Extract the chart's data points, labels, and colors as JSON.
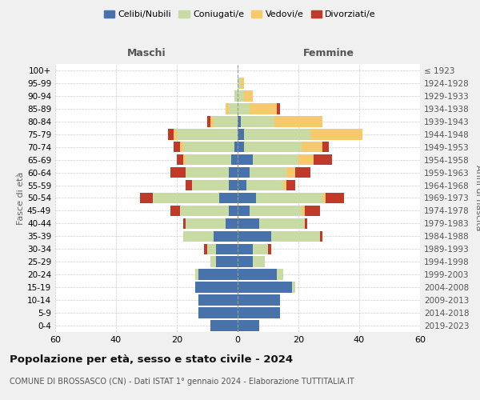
{
  "age_groups": [
    "0-4",
    "5-9",
    "10-14",
    "15-19",
    "20-24",
    "25-29",
    "30-34",
    "35-39",
    "40-44",
    "45-49",
    "50-54",
    "55-59",
    "60-64",
    "65-69",
    "70-74",
    "75-79",
    "80-84",
    "85-89",
    "90-94",
    "95-99",
    "100+"
  ],
  "birth_years": [
    "2019-2023",
    "2014-2018",
    "2009-2013",
    "2004-2008",
    "1999-2003",
    "1994-1998",
    "1989-1993",
    "1984-1988",
    "1979-1983",
    "1974-1978",
    "1969-1973",
    "1964-1968",
    "1959-1963",
    "1954-1958",
    "1949-1953",
    "1944-1948",
    "1939-1943",
    "1934-1938",
    "1929-1933",
    "1924-1928",
    "≤ 1923"
  ],
  "male": {
    "celibi": [
      9,
      13,
      13,
      14,
      13,
      7,
      7,
      8,
      4,
      3,
      6,
      3,
      3,
      2,
      1,
      0,
      0,
      0,
      0,
      0,
      0
    ],
    "coniugati": [
      0,
      0,
      0,
      0,
      1,
      2,
      3,
      10,
      13,
      16,
      22,
      12,
      14,
      15,
      17,
      20,
      8,
      3,
      1,
      0,
      0
    ],
    "vedovi": [
      0,
      0,
      0,
      0,
      0,
      0,
      0,
      0,
      0,
      0,
      0,
      0,
      0,
      1,
      1,
      1,
      1,
      1,
      0,
      0,
      0
    ],
    "divorziati": [
      0,
      0,
      0,
      0,
      0,
      0,
      1,
      0,
      1,
      3,
      4,
      2,
      5,
      2,
      2,
      2,
      1,
      0,
      0,
      0,
      0
    ]
  },
  "female": {
    "nubili": [
      7,
      14,
      14,
      18,
      13,
      5,
      5,
      11,
      7,
      4,
      6,
      3,
      4,
      5,
      2,
      2,
      1,
      0,
      0,
      0,
      0
    ],
    "coniugate": [
      0,
      0,
      0,
      1,
      2,
      4,
      5,
      16,
      15,
      17,
      22,
      12,
      12,
      15,
      19,
      22,
      11,
      4,
      2,
      1,
      0
    ],
    "vedove": [
      0,
      0,
      0,
      0,
      0,
      0,
      0,
      0,
      0,
      1,
      1,
      1,
      3,
      5,
      7,
      17,
      16,
      9,
      3,
      1,
      0
    ],
    "divorziate": [
      0,
      0,
      0,
      0,
      0,
      0,
      1,
      1,
      1,
      5,
      6,
      3,
      5,
      6,
      2,
      0,
      0,
      1,
      0,
      0,
      0
    ]
  },
  "colors": {
    "celibi": "#4a72aa",
    "coniugati": "#c8dba4",
    "vedovi": "#f5c96c",
    "divorziati": "#c0392b"
  },
  "title": "Popolazione per età, sesso e stato civile - 2024",
  "subtitle": "COMUNE DI BROSSASCO (CN) - Dati ISTAT 1° gennaio 2024 - Elaborazione TUTTITALIA.IT",
  "xlabel_left": "Maschi",
  "xlabel_right": "Femmine",
  "ylabel_left": "Fasce di età",
  "ylabel_right": "Anni di nascita",
  "xlim": 60,
  "bg_color": "#f0f0f0",
  "plot_bg": "#ffffff",
  "grid_color": "#cccccc"
}
